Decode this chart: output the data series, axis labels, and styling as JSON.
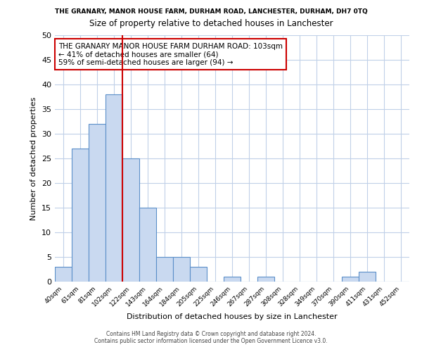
{
  "title_top": "THE GRANARY, MANOR HOUSE FARM, DURHAM ROAD, LANCHESTER, DURHAM, DH7 0TQ",
  "title_sub": "Size of property relative to detached houses in Lanchester",
  "xlabel": "Distribution of detached houses by size in Lanchester",
  "ylabel": "Number of detached properties",
  "bin_labels": [
    "40sqm",
    "61sqm",
    "81sqm",
    "102sqm",
    "122sqm",
    "143sqm",
    "164sqm",
    "184sqm",
    "205sqm",
    "225sqm",
    "246sqm",
    "267sqm",
    "287sqm",
    "308sqm",
    "328sqm",
    "349sqm",
    "370sqm",
    "390sqm",
    "411sqm",
    "431sqm",
    "452sqm"
  ],
  "bar_values": [
    3,
    27,
    32,
    38,
    25,
    15,
    5,
    5,
    3,
    0,
    1,
    0,
    1,
    0,
    0,
    0,
    0,
    1,
    2,
    0,
    0
  ],
  "bar_color": "#c9d9f0",
  "bar_edge_color": "#5b8fc9",
  "vline_color": "#cc0000",
  "vline_pos": 3.5,
  "annotation_box_text": "THE GRANARY MANOR HOUSE FARM DURHAM ROAD: 103sqm\n← 41% of detached houses are smaller (64)\n59% of semi-detached houses are larger (94) →",
  "annotation_box_edge_color": "#cc0000",
  "ylim": [
    0,
    50
  ],
  "yticks": [
    0,
    5,
    10,
    15,
    20,
    25,
    30,
    35,
    40,
    45,
    50
  ],
  "footer_line1": "Contains HM Land Registry data © Crown copyright and database right 2024.",
  "footer_line2": "Contains public sector information licensed under the Open Government Licence v3.0.",
  "bg_color": "#ffffff",
  "grid_color": "#c0d0e8"
}
